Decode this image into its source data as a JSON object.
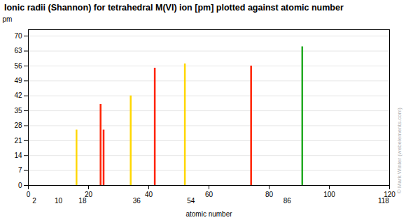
{
  "chart_data": {
    "type": "bar",
    "title": "Ionic radii (Shannon) for tetrahedral M(VI) ion [pm] plotted against atomic number",
    "xlabel": "atomic number",
    "ylabel": "pm",
    "x": [
      16,
      24,
      25,
      34,
      42,
      52,
      74,
      91
    ],
    "values": [
      26,
      38,
      26,
      42,
      55,
      57,
      56,
      65
    ],
    "colors": [
      "#FFD700",
      "#FF2200",
      "#FF2200",
      "#FFD700",
      "#FF2200",
      "#FFD700",
      "#FF2200",
      "#22AA22"
    ],
    "xlim": [
      0,
      120
    ],
    "ylim": [
      0,
      73
    ],
    "xticks": [
      0,
      20,
      40,
      60,
      80,
      100,
      120
    ],
    "x2ticks": [
      2,
      10,
      18,
      36,
      54,
      86,
      118
    ],
    "yticks": [
      0,
      7,
      14,
      21,
      28,
      35,
      42,
      49,
      56,
      63,
      70
    ],
    "grid": "y",
    "annotations": [
      {
        "text": "© Mark Winter (webelements.com)"
      }
    ]
  }
}
